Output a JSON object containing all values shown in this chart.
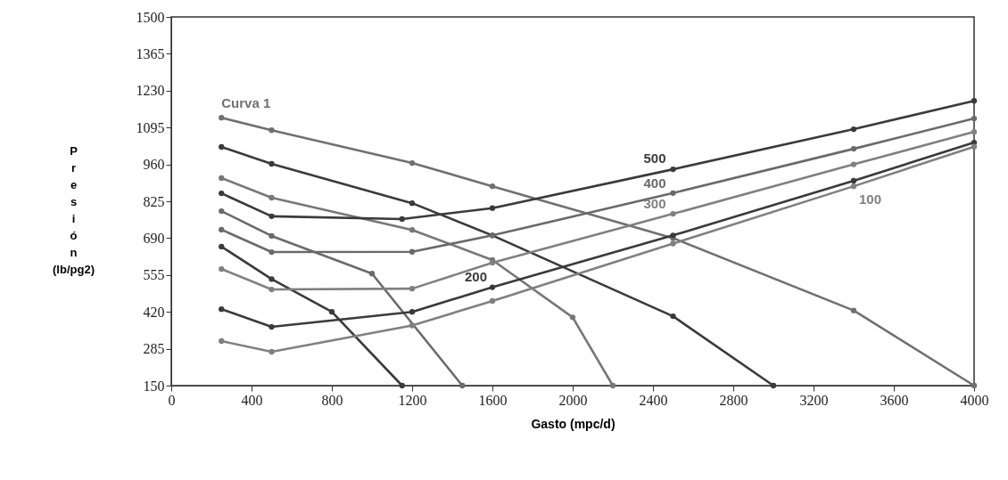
{
  "chart_data": {
    "type": "line",
    "xlabel": "Gasto (mpc/d)",
    "ylabel": "Presión (lb/pg2)",
    "xlim": [
      0,
      4000
    ],
    "xticks": [
      0,
      400,
      800,
      1200,
      1600,
      2000,
      2400,
      2800,
      3200,
      3600,
      4000
    ],
    "ylim": [
      150,
      1500
    ],
    "yticks": [
      150,
      285,
      420,
      555,
      690,
      825,
      960,
      1095,
      1230,
      1365,
      1500
    ],
    "grid": false,
    "marker": "circle",
    "series": [
      {
        "name": "Curva 1",
        "color": "#707070",
        "x": [
          250,
          500,
          1200,
          1600,
          2500,
          3400,
          4000
        ],
        "values": [
          1131,
          1085,
          965,
          880,
          690,
          425,
          150
        ]
      },
      {
        "color": "#3a3a3a",
        "x": [
          250,
          500,
          1200,
          1600,
          2500,
          3000
        ],
        "values": [
          1024,
          962,
          818,
          700,
          404,
          150
        ]
      },
      {
        "color": "#777777",
        "x": [
          250,
          500,
          1200,
          1600,
          2000,
          2200
        ],
        "values": [
          910,
          838,
          720,
          610,
          400,
          150
        ]
      },
      {
        "color": "#6a6a6a",
        "x": [
          250,
          500,
          1000,
          1450
        ],
        "values": [
          789,
          698,
          560,
          150
        ]
      },
      {
        "color": "#3a3a3a",
        "x": [
          250,
          500,
          800,
          1150
        ],
        "values": [
          659,
          540,
          420,
          150
        ]
      },
      {
        "name": "500",
        "color": "#3a3a3a",
        "x": [
          250,
          500,
          1150,
          1600,
          2500,
          3400,
          4000
        ],
        "values": [
          854,
          770,
          760,
          800,
          942,
          1089,
          1193
        ]
      },
      {
        "name": "400",
        "color": "#6a6a6a",
        "x": [
          250,
          500,
          1200,
          1600,
          2500,
          3400,
          4000
        ],
        "values": [
          721,
          639,
          640,
          700,
          855,
          1017,
          1128
        ]
      },
      {
        "name": "300",
        "color": "#808080",
        "x": [
          250,
          500,
          1200,
          1600,
          2500,
          3400,
          4000
        ],
        "values": [
          577,
          502,
          505,
          600,
          779,
          960,
          1079
        ]
      },
      {
        "name": "200",
        "color": "#3a3a3a",
        "x": [
          250,
          500,
          1200,
          1600,
          2500,
          3400,
          4000
        ],
        "values": [
          430,
          365,
          420,
          510,
          700,
          900,
          1040
        ]
      },
      {
        "name": "100",
        "color": "#808080",
        "x": [
          250,
          500,
          1200,
          1600,
          2500,
          3400,
          4000
        ],
        "values": [
          313,
          274,
          370,
          460,
          670,
          880,
          1025
        ]
      }
    ]
  }
}
